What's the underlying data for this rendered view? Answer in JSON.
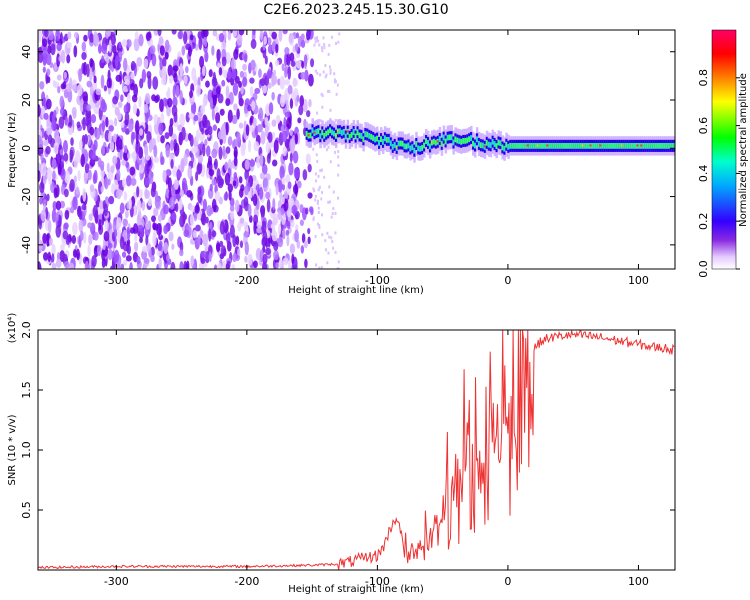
{
  "title": "C2E6.2023.245.15.30.G10",
  "chart_data": [
    {
      "type": "heatmap",
      "xlabel": "Height of straight line (km)",
      "ylabel": "Frequency (Hz)",
      "xlim": [
        -360,
        128
      ],
      "ylim": [
        -50,
        49
      ],
      "xticks": [
        -300,
        -200,
        -100,
        0,
        100
      ],
      "yticks": [
        -40,
        -20,
        0,
        20,
        40
      ],
      "colorbar": {
        "label": "Normalized spectral amplitude",
        "range": [
          0.0,
          1.0
        ],
        "ticks": [
          "0.0",
          "0.2",
          "0.4",
          "0.6",
          "0.8"
        ],
        "colors": [
          "#ffffff",
          "#d9b3ff",
          "#7f00ff",
          "#0000ff",
          "#00ffff",
          "#00ff00",
          "#ffff00",
          "#ff8000",
          "#ff0000",
          "#ff0080"
        ]
      },
      "signal_band_center_hz": [
        {
          "x": -155,
          "y": 6
        },
        {
          "x": -130,
          "y": 6
        },
        {
          "x": -110,
          "y": 5
        },
        {
          "x": -90,
          "y": 2
        },
        {
          "x": -75,
          "y": 0
        },
        {
          "x": -60,
          "y": 2
        },
        {
          "x": -40,
          "y": 4
        },
        {
          "x": -20,
          "y": 2
        },
        {
          "x": 0,
          "y": 1
        },
        {
          "x": 50,
          "y": 1
        },
        {
          "x": 128,
          "y": 1
        }
      ]
    },
    {
      "type": "line",
      "xlabel": "Height of straight line (km)",
      "ylabel": "SNR (10 * v/v)",
      "y_multiplier_label": "(x10⁴)",
      "xlim": [
        -360,
        128
      ],
      "ylim": [
        0,
        2.0
      ],
      "xticks": [
        -300,
        -200,
        -100,
        0,
        100
      ],
      "yticks": [
        "0.5",
        "1.0",
        "1.5",
        "2.0"
      ],
      "series": [
        {
          "color": "#ee3333",
          "x": [
            -360,
            -300,
            -250,
            -200,
            -150,
            -130,
            -120,
            -110,
            -100,
            -95,
            -90,
            -85,
            -80,
            -75,
            -70,
            -65,
            -60,
            -55,
            -50,
            -45,
            -40,
            -35,
            -30,
            -25,
            -20,
            -15,
            -10,
            -5,
            0,
            5,
            10,
            15,
            20,
            25,
            30,
            40,
            50,
            60,
            70,
            80,
            90,
            100,
            110,
            120,
            128
          ],
          "y": [
            0.02,
            0.03,
            0.03,
            0.03,
            0.04,
            0.05,
            0.07,
            0.1,
            0.12,
            0.2,
            0.35,
            0.45,
            0.2,
            0.15,
            0.22,
            0.28,
            0.4,
            0.5,
            0.7,
            0.85,
            0.9,
            1.1,
            1.3,
            1.2,
            1.05,
            1.3,
            1.35,
            1.5,
            1.45,
            1.6,
            1.7,
            1.78,
            1.85,
            1.9,
            1.93,
            1.95,
            1.96,
            1.95,
            1.94,
            1.92,
            1.9,
            1.88,
            1.86,
            1.85,
            1.83
          ]
        }
      ]
    }
  ]
}
